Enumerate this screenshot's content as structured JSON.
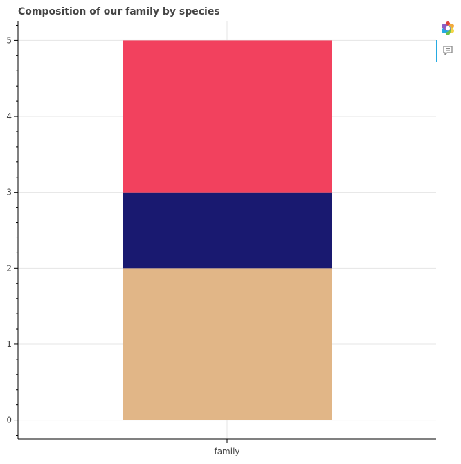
{
  "chart_data": {
    "type": "bar",
    "stacked": true,
    "title": "Composition of our family by species",
    "categories": [
      "family"
    ],
    "series": [
      {
        "values": [
          2
        ],
        "color": "#e1b687"
      },
      {
        "values": [
          1
        ],
        "color": "#191970"
      },
      {
        "values": [
          2
        ],
        "color": "#f2415e"
      }
    ],
    "ylim": [
      -0.25,
      5.25
    ],
    "yticks": [
      0,
      1,
      2,
      3,
      4,
      5
    ],
    "y_minor_step": 0.2,
    "grid": true,
    "xlabel": "",
    "ylabel": ""
  },
  "toolbar": {
    "logo_icon": "bokeh-logo-icon",
    "hover_icon": "hover-tooltip-icon",
    "accent_color": "#26aae1"
  }
}
